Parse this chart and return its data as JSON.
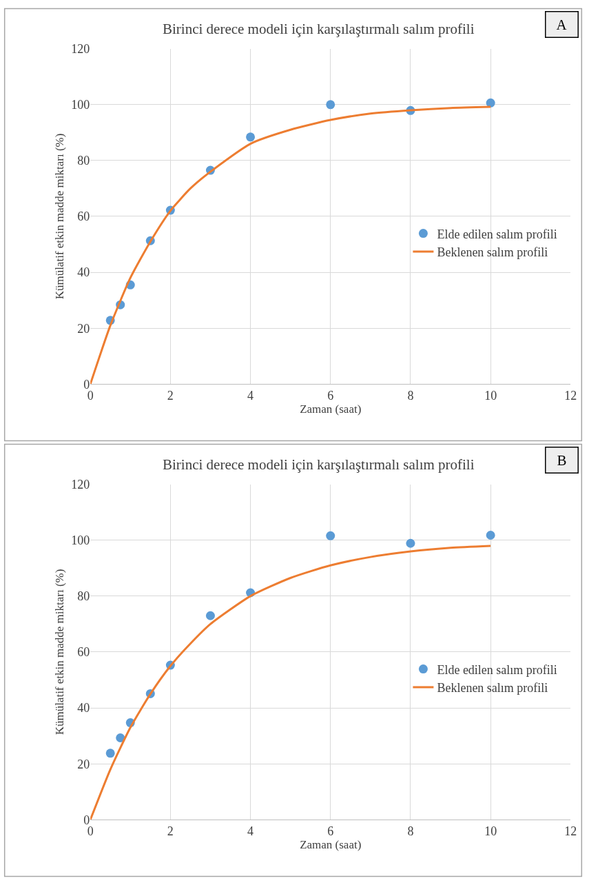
{
  "chart_data": [
    {
      "type": "scatter",
      "title": "Birinci derece modeli için karşılaştırmalı salım profili",
      "xlabel": "Zaman (saat)",
      "ylabel": "Kümülatif etkin madde miktarı (%)",
      "annotations": [
        "A"
      ],
      "xlim": [
        0,
        12
      ],
      "xticks": [
        0,
        2,
        4,
        6,
        8,
        10,
        12
      ],
      "ylim": [
        0,
        120
      ],
      "yticks": [
        0,
        20,
        40,
        60,
        80,
        100,
        120
      ],
      "grid": true,
      "legend": "right",
      "series": [
        {
          "name": "Elde edilen salım profili",
          "marker": "circle",
          "color": "#5b9bd5",
          "x": [
            0.5,
            0.75,
            1,
            1.5,
            2,
            3,
            4,
            6,
            8,
            10
          ],
          "values": [
            22.8,
            28.4,
            35.5,
            51.3,
            62.2,
            76.5,
            88.4,
            100,
            97.9,
            100.6
          ]
        },
        {
          "name": "Beklenen salım profili",
          "type": "line",
          "marker": "none",
          "line_style": "solid",
          "color": "#ed7d31",
          "x": [
            0,
            0.5,
            1,
            1.5,
            2,
            2.5,
            3,
            4,
            5,
            6,
            7,
            8,
            9,
            10
          ],
          "values": [
            0,
            21,
            38,
            51,
            62,
            70,
            76,
            86,
            91,
            94.5,
            96.8,
            98,
            98.8,
            99.2
          ]
        }
      ]
    },
    {
      "type": "scatter",
      "title": "Birinci derece modeli için karşılaştırmalı salım profili",
      "xlabel": "Zaman (saat)",
      "ylabel": "Kümülatif etkin madde miktarı (%)",
      "annotations": [
        "B"
      ],
      "xlim": [
        0,
        12
      ],
      "xticks": [
        0,
        2,
        4,
        6,
        8,
        10,
        12
      ],
      "ylim": [
        0,
        120
      ],
      "yticks": [
        0,
        20,
        40,
        60,
        80,
        100,
        120
      ],
      "grid": true,
      "legend": "right",
      "series": [
        {
          "name": "Elde edilen salım profili",
          "marker": "circle",
          "color": "#5b9bd5",
          "x": [
            0.5,
            0.75,
            1,
            1.5,
            2,
            3,
            4,
            6,
            8,
            10
          ],
          "values": [
            23.8,
            29.3,
            34.7,
            45.1,
            55.3,
            73,
            81.2,
            101.6,
            98.9,
            101.8
          ]
        },
        {
          "name": "Beklenen salım profili",
          "type": "line",
          "marker": "none",
          "line_style": "solid",
          "color": "#ed7d31",
          "x": [
            0,
            0.5,
            1,
            1.5,
            2,
            2.5,
            3,
            4,
            5,
            6,
            7,
            8,
            9,
            10
          ],
          "values": [
            0,
            18,
            33,
            45,
            55,
            63,
            70,
            80,
            86.5,
            91,
            94,
            96,
            97.3,
            98
          ]
        }
      ]
    }
  ]
}
